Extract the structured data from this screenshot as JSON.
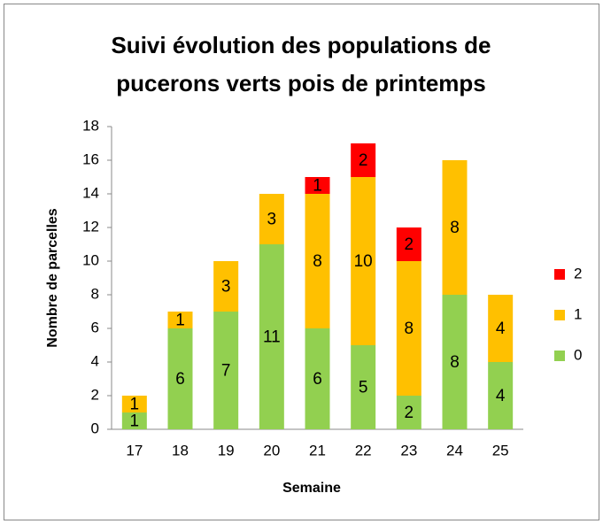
{
  "chart_data": {
    "type": "stacked_bar",
    "title": [
      "Suivi évolution des populations de",
      "pucerons verts pois de printemps"
    ],
    "x_label": "Semaine",
    "y_label": "Nombre de parcelles",
    "categories": [
      "17",
      "18",
      "19",
      "20",
      "21",
      "22",
      "23",
      "24",
      "25"
    ],
    "series": [
      {
        "name": "0",
        "color": "#92d050",
        "values": [
          1,
          6,
          7,
          11,
          6,
          5,
          2,
          8,
          4
        ]
      },
      {
        "name": "1",
        "color": "#ffc000",
        "values": [
          1,
          1,
          3,
          3,
          8,
          10,
          8,
          8,
          4
        ]
      },
      {
        "name": "2",
        "color": "#ff0000",
        "values": [
          0,
          0,
          0,
          0,
          1,
          2,
          2,
          0,
          0
        ]
      }
    ],
    "ylim": [
      0,
      18
    ],
    "yticks": [
      0,
      2,
      4,
      6,
      8,
      10,
      12,
      14,
      16,
      18
    ],
    "grid": false,
    "legend": "right"
  }
}
